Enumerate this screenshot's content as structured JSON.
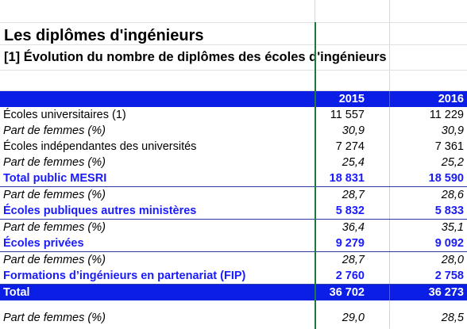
{
  "title": "Les diplômes d'ingénieurs",
  "subtitle": "[1] Évolution du nombre de diplômes des écoles d'ingénieurs",
  "header": {
    "label": "",
    "y2015": "2015",
    "y2016": "2016"
  },
  "rows": [
    {
      "label": "Écoles universitaires (1)",
      "v2015": "11 557",
      "v2016": "11 229"
    },
    {
      "label": "Part de femmes (%)",
      "v2015": "30,9",
      "v2016": "30,9"
    },
    {
      "label": "Écoles indépendantes des universités",
      "v2015": "7 274",
      "v2016": "7 361"
    },
    {
      "label": "Part de femmes (%)",
      "v2015": "25,4",
      "v2016": "25,2"
    },
    {
      "label": "Total public MESRI",
      "v2015": "18 831",
      "v2016": "18 590"
    },
    {
      "label": "Part de femmes (%)",
      "v2015": "28,7",
      "v2016": "28,6"
    },
    {
      "label": "Écoles publiques autres ministères",
      "v2015": "5 832",
      "v2016": "5 833"
    },
    {
      "label": "Part de femmes (%)",
      "v2015": "36,4",
      "v2016": "35,1"
    },
    {
      "label": "Écoles privées",
      "v2015": "9 279",
      "v2016": "9 092"
    },
    {
      "label": "Part de femmes (%)",
      "v2015": "28,7",
      "v2016": "28,0"
    },
    {
      "label": "Formations d’ingénieurs en partenariat (FIP)",
      "v2015": "2 760",
      "v2016": "2 758"
    },
    {
      "label": "Total",
      "v2015": "36 702",
      "v2016": "36 273"
    },
    {
      "label": "Part de femmes (%)",
      "v2015": "29,0",
      "v2016": "28,5"
    }
  ],
  "colors": {
    "header_bg": "#0a1ee6",
    "subtotal_text": "#1a1aff",
    "freeze_line": "#1e7a3c"
  }
}
